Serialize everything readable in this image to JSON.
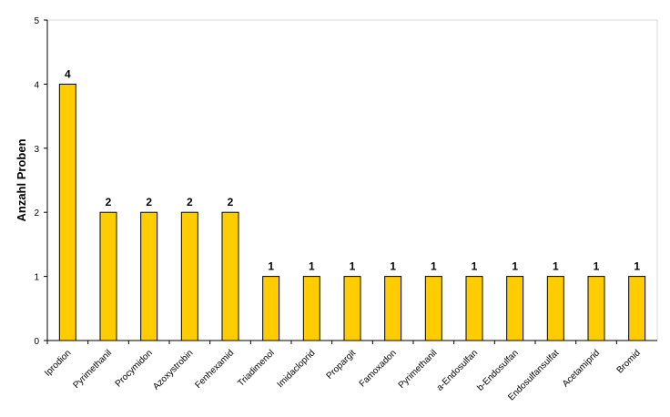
{
  "chart_data": {
    "type": "bar",
    "y_label": "Anzahl Proben",
    "categories": [
      "Iprodion",
      "Pyrimethanil",
      "Procymidon",
      "Azoxystrobin",
      "Fenhexamid",
      "Triadimenol",
      "Imidacloprid",
      "Propargit",
      "Famoxadon",
      "Pyrimethanil",
      "a-Endosulfan",
      "b-Endosulfan",
      "Endosulfansulfat",
      "Acetamiprid",
      "Bromid"
    ],
    "values": [
      4,
      2,
      2,
      2,
      2,
      1,
      1,
      1,
      1,
      1,
      1,
      1,
      1,
      1,
      1
    ],
    "color": "#ffcc00",
    "ylim": [
      0,
      5
    ],
    "yticks": [
      0,
      1,
      2,
      3,
      4,
      5
    ],
    "grid": false
  }
}
